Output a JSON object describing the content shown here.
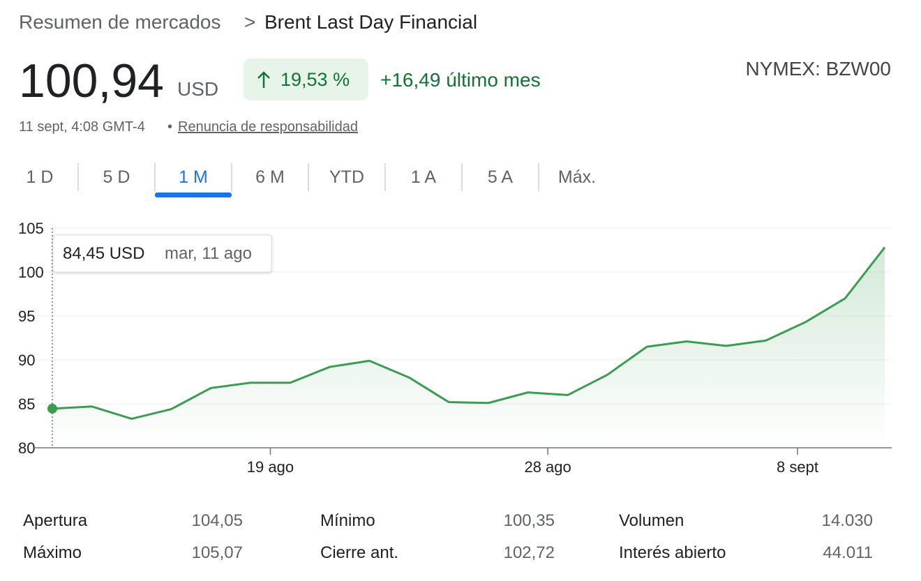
{
  "header": {
    "breadcrumb": "Resumen de mercados",
    "separator": ">",
    "title": "Brent Last Day Financial",
    "price": "100,94",
    "currency": "USD",
    "change": "19,53 %",
    "month_change": "+16,49 último mes",
    "exchange": "NYMEX: BZW00",
    "timestamp": "11 sept, 4:08 GMT-4",
    "bullet": "•",
    "disclaimer": "Renuncia de responsabilidad"
  },
  "tabs": {
    "items": [
      "1 D",
      "5 D",
      "1 M",
      "6 M",
      "YTD",
      "1 A",
      "5 A",
      "Máx."
    ],
    "selected": 2
  },
  "chart_data": {
    "type": "line",
    "x": [
      0,
      1,
      2,
      3,
      4,
      5,
      6,
      7,
      8,
      9,
      10,
      11,
      12,
      13,
      14,
      15,
      16,
      17,
      18,
      19,
      20,
      21
    ],
    "series": [
      {
        "name": "Brent Last Day Financial",
        "color": "#3c9c52",
        "values": [
          84.45,
          84.7,
          83.3,
          84.4,
          86.8,
          87.4,
          87.4,
          89.2,
          89.9,
          88.0,
          85.2,
          85.1,
          86.3,
          86.0,
          88.3,
          91.5,
          92.1,
          91.6,
          92.2,
          94.3,
          97.0,
          102.8
        ]
      }
    ],
    "xlim": [
      0,
      21
    ],
    "xticks": [
      {
        "value": 5.5,
        "label": "19 ago"
      },
      {
        "value": 12.5,
        "label": "28 ago"
      },
      {
        "value": 18.8,
        "label": "8 sept"
      }
    ],
    "ylim": [
      80,
      105
    ],
    "yticks": [
      80,
      85,
      90,
      95,
      100,
      105
    ],
    "grid": true,
    "tooltip": {
      "label": "84,45 USD",
      "date": "mar, 11 ago"
    }
  },
  "stats": {
    "rows": [
      [
        [
          "Apertura",
          "104,05"
        ],
        [
          "Mínimo",
          "100,35"
        ],
        [
          "Volumen",
          "14.030"
        ]
      ],
      [
        [
          "Máximo",
          "105,07"
        ],
        [
          "Cierre ant.",
          "102,72"
        ],
        [
          "Interés abierto",
          "44.011"
        ]
      ]
    ]
  }
}
